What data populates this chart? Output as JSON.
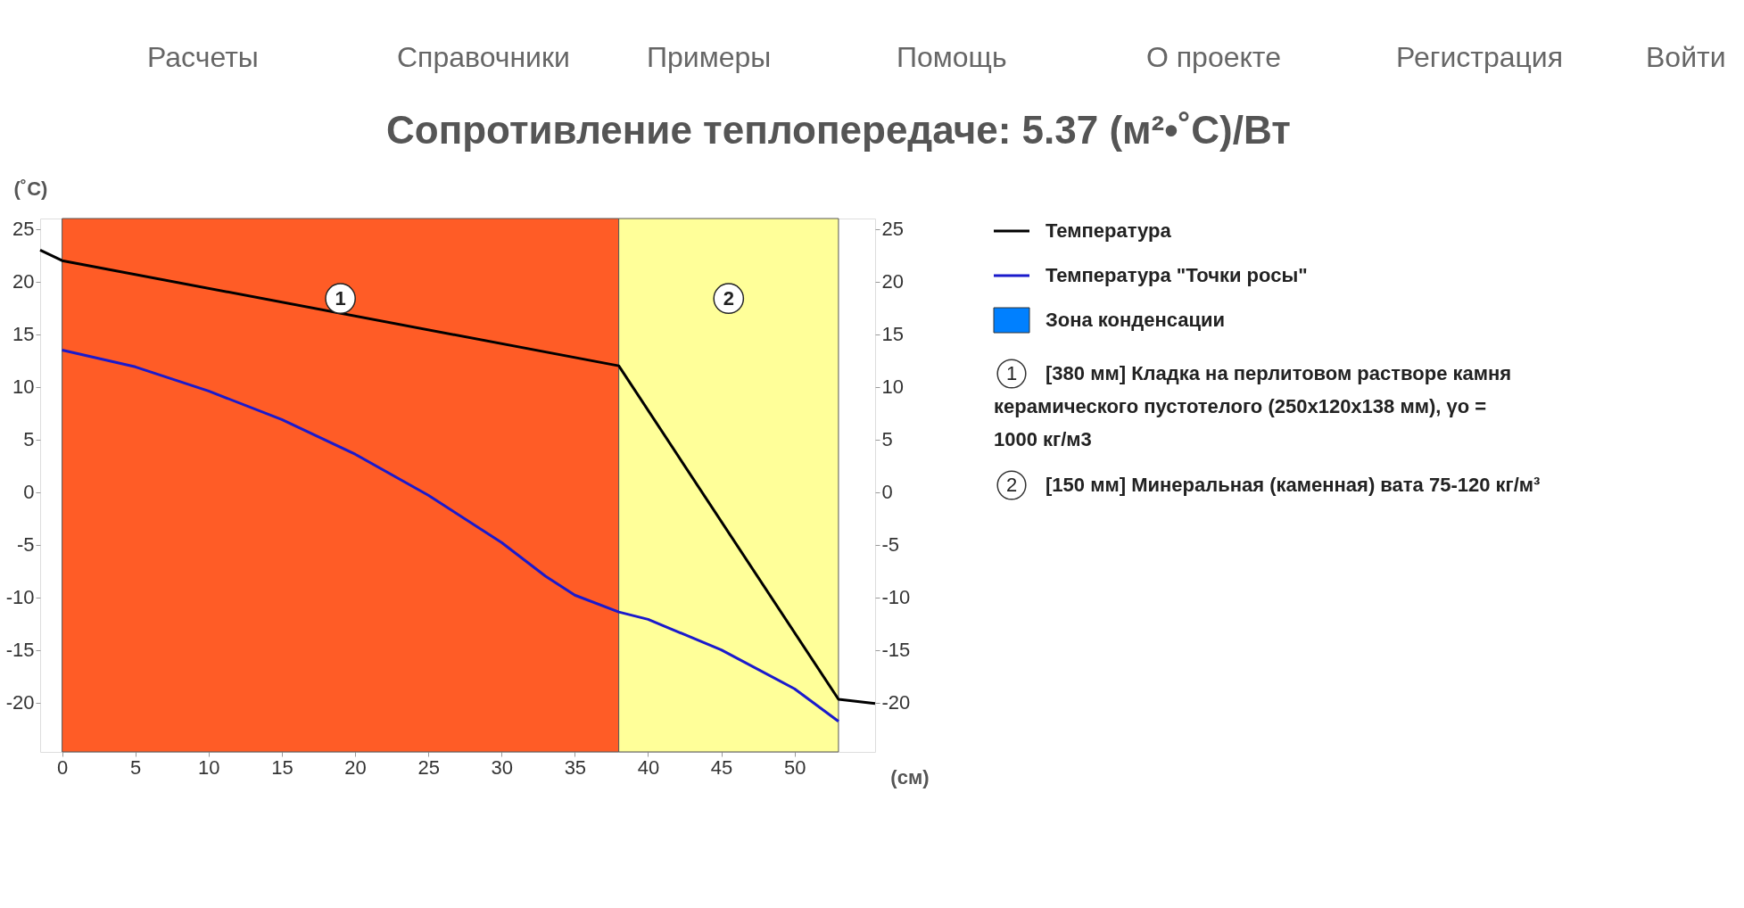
{
  "chart_data": {
    "type": "line",
    "title": "Сопротивление теплопередаче: 5.37 (м²•˚C)/Вт",
    "xlabel": "(см)",
    "ylabel": "(˚C)",
    "annotations": [
      "Расчеты",
      "Справочники",
      "Примеры",
      "Помощь",
      "О проекте",
      "Регистрация",
      "Войти",
      "[380 мм] Кладка на перлитовом растворе камня керамического пустотелого (250x120x138 мм), γо = 1000 кг/м3",
      "[150 мм] Минеральная (каменная) вата 75-120 кг/м³"
    ],
    "xlim": [
      -1.5,
      55.5
    ],
    "xticks": [
      0,
      5,
      10,
      15,
      20,
      25,
      30,
      35,
      40,
      45,
      50
    ],
    "ylim": [
      -24.7,
      26
    ],
    "yticks": [
      -20,
      -15,
      -10,
      -5,
      0,
      5,
      10,
      15,
      20,
      25
    ],
    "y2lim": [
      -24.7,
      26
    ],
    "y2ticks": [
      -20,
      -15,
      -10,
      -5,
      0,
      5,
      10,
      15,
      20,
      25
    ],
    "bands": [
      {
        "axis": "x",
        "from": 0,
        "to": 38,
        "label": "1",
        "color": "#ff5c26"
      },
      {
        "axis": "x",
        "from": 38,
        "to": 53,
        "label": "2",
        "color": "#ffff99"
      }
    ],
    "series": [
      {
        "name": "Температура",
        "color": "#000000",
        "x": [
          -1.5,
          0,
          38,
          53,
          55.5
        ],
        "values": [
          23,
          22,
          12,
          -19.7,
          -20.1
        ]
      },
      {
        "name": "Температура \"Точки росы\"",
        "color": "#1a1acc",
        "x": [
          0,
          5,
          10,
          15,
          20,
          25,
          30,
          33,
          35,
          38,
          40,
          45,
          50,
          53
        ],
        "values": [
          13.5,
          11.9,
          9.6,
          6.9,
          3.6,
          -0.3,
          -4.8,
          -8,
          -9.8,
          -11.4,
          -12.1,
          -15,
          -18.7,
          -21.8
        ]
      },
      {
        "name": "Зона конденсации",
        "type": "area",
        "color": "#0080ff"
      }
    ],
    "grid": false,
    "legend": "right",
    "line_style": "solid",
    "marker": "none"
  }
}
